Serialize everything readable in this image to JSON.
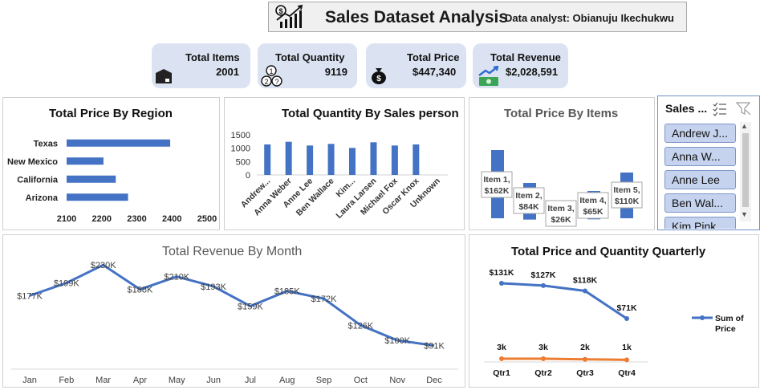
{
  "header": {
    "title": "Sales Dataset Analysis",
    "analyst": "Data analyst: Obianuju Ikechukwu"
  },
  "kpis": [
    {
      "label": "Total Items",
      "value": "2001",
      "icon": "box-icon"
    },
    {
      "label": "Total Quantity",
      "value": "9119",
      "icon": "numbers-icon"
    },
    {
      "label": "Total Price",
      "value": "$447,340",
      "icon": "money-bag-icon"
    },
    {
      "label": "Total Revenue",
      "value": "$2,028,591",
      "icon": "revenue-icon"
    }
  ],
  "slicer": {
    "title": "Sales ...",
    "items": [
      "Andrew J...",
      "Anna W...",
      "Anne Lee",
      "Ben Wal...",
      "Kim Pink"
    ]
  },
  "chart_data": [
    {
      "id": "region",
      "type": "bar",
      "orientation": "horizontal",
      "title": "Total Price By Region",
      "categories": [
        "Texas",
        "New Mexico",
        "California",
        "Arizona"
      ],
      "values": [
        2395,
        2205,
        2240,
        2275
      ],
      "xlim": [
        2100,
        2500
      ],
      "xticks": [
        "2100",
        "2200",
        "2300",
        "2400",
        "2500"
      ],
      "color": "#4472c4"
    },
    {
      "id": "salesperson",
      "type": "bar",
      "title": "Total Quantity By Sales person",
      "categories": [
        "Andrew...",
        "Anna Weber",
        "Anne Lee",
        "Ben Wallace",
        "Kim...",
        "Laura Larsen",
        "Michael Fox",
        "Oscar Knox",
        "Unknown"
      ],
      "values": [
        1140,
        1240,
        1100,
        1160,
        1010,
        1220,
        1100,
        1140,
        0
      ],
      "ylim": [
        0,
        1500
      ],
      "yticks": [
        "0",
        "500",
        "1000",
        "1500"
      ],
      "color": "#4472c4"
    },
    {
      "id": "items",
      "type": "bar",
      "title": "Total Price By Items",
      "categories": [
        "Item 1",
        "Item 2",
        "Item 3",
        "Item 4",
        "Item 5"
      ],
      "values": [
        162,
        84,
        26,
        65,
        110
      ],
      "data_labels": [
        "Item 1, $162K",
        "Item 2, $84K",
        "Item 3, $26K",
        "Item 4, $65K",
        "Item 5, $110K"
      ],
      "unit": "$K",
      "color": "#4472c4"
    },
    {
      "id": "month",
      "type": "line",
      "title": "Total Revenue By Month",
      "categories": [
        "Jan",
        "Feb",
        "Mar",
        "Apr",
        "May",
        "Jun",
        "Jul",
        "Aug",
        "Sep",
        "Oct",
        "Nov",
        "Dec"
      ],
      "values": [
        177,
        199,
        230,
        188,
        210,
        193,
        159,
        185,
        172,
        126,
        100,
        91
      ],
      "data_labels": [
        "$177K",
        "$199K",
        "$230K",
        "$188K",
        "$210K",
        "$193K",
        "$159K",
        "$185K",
        "$172K",
        "$126K",
        "$100K",
        "$91K"
      ],
      "unit": "$K",
      "ylim": [
        60,
        240
      ],
      "color": "#4472c4"
    },
    {
      "id": "quarterly",
      "type": "line",
      "title": "Total Price and Quantity Quarterly",
      "categories": [
        "Qtr1",
        "Qtr2",
        "Qtr3",
        "Qtr4"
      ],
      "series": [
        {
          "name": "Sum of Price",
          "values": [
            131,
            127,
            118,
            71
          ],
          "labels": [
            "$131K",
            "$127K",
            "$118K",
            "$71K"
          ],
          "color": "#4472c4"
        },
        {
          "values": [
            3,
            3,
            2,
            1
          ],
          "labels": [
            "3k",
            "3k",
            "2k",
            "1k"
          ],
          "color": "#ed7d31"
        }
      ],
      "legend": "right",
      "legend_label": [
        "Sum of",
        "Price"
      ]
    }
  ]
}
